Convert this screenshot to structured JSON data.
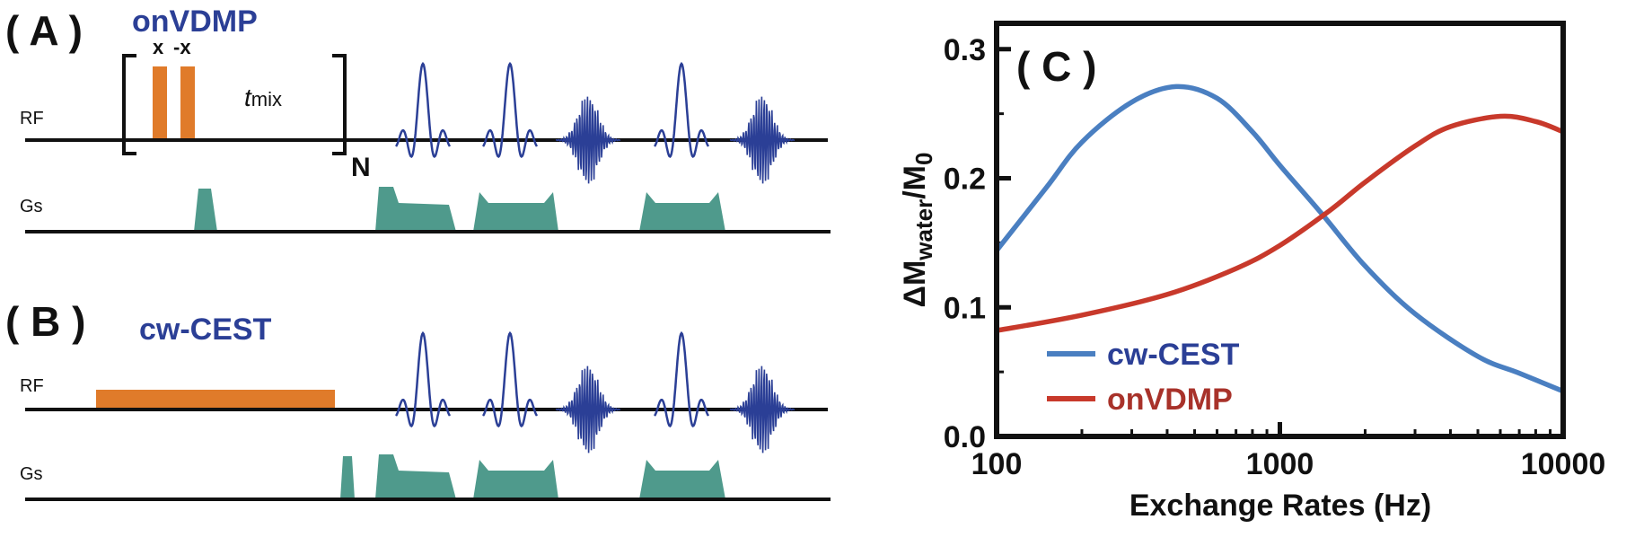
{
  "panel_a": {
    "label": "( A )",
    "title": "onVDMP",
    "phase_x": "x",
    "phase_minus_x": "-x",
    "tmix_main": "t",
    "tmix_sub": "mix",
    "loop_label": "N",
    "rf_label": "RF",
    "gs_label": "Gs"
  },
  "panel_b": {
    "label": "( B )",
    "title": "cw-CEST",
    "rf_label": "RF",
    "gs_label": "Gs"
  },
  "colors": {
    "pulse_orange": "#e07b2a",
    "gradient_teal": "#4f9a8c",
    "readout_navy": "#2b3f96",
    "cw_cest_line": "#4a7fc1",
    "onvdmp_line": "#c8392b"
  },
  "chart_data": {
    "type": "line",
    "panel_label": "( C )",
    "xlabel": "Exchange Rates (Hz)",
    "ylabel_prefix": "ΔM",
    "ylabel_sub1": "water",
    "ylabel_mid": "/M",
    "ylabel_sub2": "0",
    "x_scale": "log",
    "xlim": [
      100,
      10000
    ],
    "ylim": [
      0.0,
      0.32
    ],
    "x_ticks": [
      100,
      1000,
      10000
    ],
    "x_tick_labels": [
      "100",
      "1000",
      "10000"
    ],
    "y_ticks": [
      0.0,
      0.1,
      0.2,
      0.3
    ],
    "y_tick_labels": [
      "0.0",
      "0.1",
      "0.2",
      "0.3"
    ],
    "legend_position": "bottom-left",
    "series": [
      {
        "name": "cw-CEST",
        "color": "#4a7fc1",
        "x": [
          100,
          150,
          200,
          300,
          430,
          600,
          800,
          1000,
          1400,
          2000,
          3000,
          5000,
          7000,
          10000
        ],
        "y": [
          0.144,
          0.193,
          0.228,
          0.259,
          0.271,
          0.262,
          0.236,
          0.21,
          0.173,
          0.132,
          0.095,
          0.062,
          0.049,
          0.035
        ]
      },
      {
        "name": "onVDMP",
        "color": "#c8392b",
        "x": [
          100,
          200,
          400,
          700,
          1000,
          1500,
          2000,
          3000,
          4000,
          6000,
          8000,
          10000
        ],
        "y": [
          0.082,
          0.094,
          0.11,
          0.13,
          0.148,
          0.175,
          0.197,
          0.225,
          0.24,
          0.248,
          0.244,
          0.236
        ]
      }
    ]
  }
}
